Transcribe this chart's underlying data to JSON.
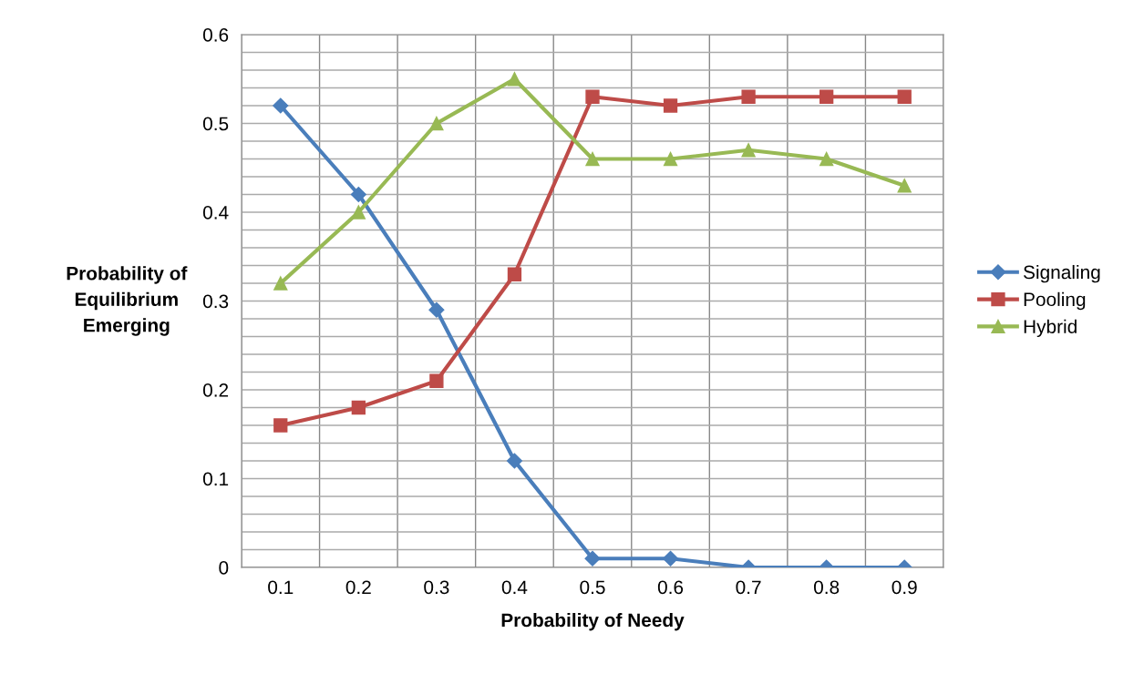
{
  "chart_data": {
    "type": "line",
    "xlabel": "Probability of Needy",
    "ylabel": "Probability of\nEquilibrium\nEmerging",
    "categories": [
      "0.1",
      "0.2",
      "0.3",
      "0.4",
      "0.5",
      "0.6",
      "0.7",
      "0.8",
      "0.9"
    ],
    "series": [
      {
        "name": "Signaling",
        "color": "#4a7ebb",
        "marker": "diamond",
        "values": [
          0.52,
          0.42,
          0.29,
          0.12,
          0.01,
          0.01,
          0,
          0,
          0
        ]
      },
      {
        "name": "Pooling",
        "color": "#be4b48",
        "marker": "square",
        "values": [
          0.16,
          0.18,
          0.21,
          0.33,
          0.53,
          0.52,
          0.53,
          0.53,
          0.53
        ]
      },
      {
        "name": "Hybrid",
        "color": "#98b954",
        "marker": "triangle",
        "values": [
          0.32,
          0.4,
          0.5,
          0.55,
          0.46,
          0.46,
          0.47,
          0.46,
          0.43
        ]
      }
    ],
    "ylim": [
      0,
      0.6
    ],
    "yticks": [
      0,
      {
        "value": 0.02,
        "label": null
      },
      {
        "value": 0.04,
        "label": null
      },
      {
        "value": 0.06,
        "label": null
      },
      {
        "value": 0.08,
        "label": null
      },
      0.1,
      {
        "value": 0.12,
        "label": null
      },
      {
        "value": 0.14,
        "label": null
      },
      {
        "value": 0.16,
        "label": null
      },
      {
        "value": 0.18,
        "label": null
      },
      0.2,
      {
        "value": 0.22,
        "label": null
      },
      {
        "value": 0.24,
        "label": null
      },
      {
        "value": 0.26,
        "label": null
      },
      {
        "value": 0.28,
        "label": null
      },
      0.3,
      {
        "value": 0.32,
        "label": null
      },
      {
        "value": 0.34,
        "label": null
      },
      {
        "value": 0.36,
        "label": null
      },
      {
        "value": 0.38,
        "label": null
      },
      0.4,
      {
        "value": 0.42,
        "label": null
      },
      {
        "value": 0.44,
        "label": null
      },
      {
        "value": 0.46,
        "label": null
      },
      {
        "value": 0.48,
        "label": null
      },
      0.5,
      {
        "value": 0.52,
        "label": null
      },
      {
        "value": 0.54,
        "label": null
      },
      {
        "value": 0.56,
        "label": null
      },
      {
        "value": 0.58,
        "label": null
      },
      0.6
    ],
    "grid": true,
    "legend": "right",
    "line_style": "solid"
  }
}
